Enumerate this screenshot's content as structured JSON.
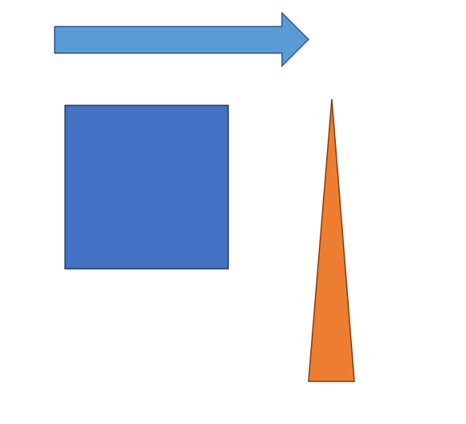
{
  "shapes": [
    {
      "id": "arrow",
      "kind": "block-arrow",
      "direction": "right",
      "fill": "#5B9BD5",
      "stroke": "#2F5597"
    },
    {
      "id": "square",
      "kind": "square",
      "fill": "#4472C4",
      "stroke": "#1F3864"
    },
    {
      "id": "triangle",
      "kind": "isosceles-triangle",
      "direction": "up",
      "fill": "#ED7D31",
      "stroke": "#843C0C"
    }
  ]
}
